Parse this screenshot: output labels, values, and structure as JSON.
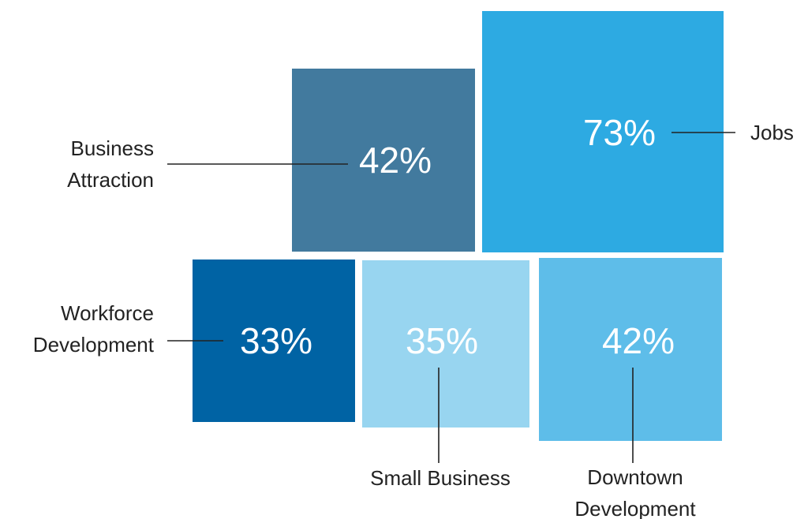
{
  "chart_data": {
    "type": "treemap",
    "unit": "%",
    "items": [
      {
        "key": "business_attraction",
        "label": [
          "Business",
          "Attraction"
        ],
        "value": 42,
        "display": "42%",
        "color": "#427a9e"
      },
      {
        "key": "jobs",
        "label": [
          "Jobs"
        ],
        "value": 73,
        "display": "73%",
        "color": "#2daae2"
      },
      {
        "key": "workforce_development",
        "label": [
          "Workforce",
          "Development"
        ],
        "value": 33,
        "display": "33%",
        "color": "#0063a4"
      },
      {
        "key": "small_business",
        "label": [
          "Small Business"
        ],
        "value": 35,
        "display": "35%",
        "color": "#98d5f0"
      },
      {
        "key": "downtown_development",
        "label": [
          "Downtown",
          "Development"
        ],
        "value": 42,
        "display": "42%",
        "color": "#5ebde9"
      }
    ]
  }
}
